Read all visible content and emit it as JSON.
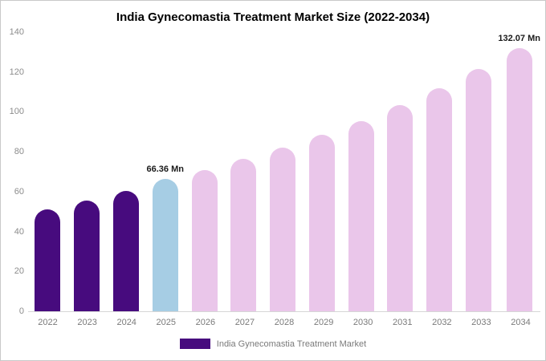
{
  "chart_data": {
    "type": "bar",
    "title": "India Gynecomastia Treatment Market Size (2022-2034)",
    "unit": "Mn",
    "categories": [
      "2022",
      "2023",
      "2024",
      "2025",
      "2026",
      "2027",
      "2028",
      "2029",
      "2030",
      "2031",
      "2032",
      "2033",
      "2034"
    ],
    "values": [
      51.2,
      55.4,
      60.3,
      66.36,
      70.9,
      76.3,
      82.2,
      88.5,
      95.3,
      103.4,
      112.0,
      121.6,
      132.07
    ],
    "ylim": [
      0,
      140
    ],
    "yticks": [
      0,
      20,
      40,
      60,
      80,
      100,
      120,
      140
    ],
    "grid": false,
    "legend_position": "bottom",
    "bar_colors": {
      "historical": "#470b7e",
      "current": "#a6cde4",
      "forecast": "#eac6ea"
    },
    "color_roles": [
      "historical",
      "historical",
      "historical",
      "current",
      "forecast",
      "forecast",
      "forecast",
      "forecast",
      "forecast",
      "forecast",
      "forecast",
      "forecast",
      "forecast"
    ],
    "annotations": [
      {
        "category": "2025",
        "text": "66.36 Mn"
      },
      {
        "category": "2034",
        "text": "132.07 Mn"
      }
    ]
  },
  "legend": {
    "label": "India Gynecomastia Treatment Market",
    "swatch_color": "#470b7e"
  }
}
